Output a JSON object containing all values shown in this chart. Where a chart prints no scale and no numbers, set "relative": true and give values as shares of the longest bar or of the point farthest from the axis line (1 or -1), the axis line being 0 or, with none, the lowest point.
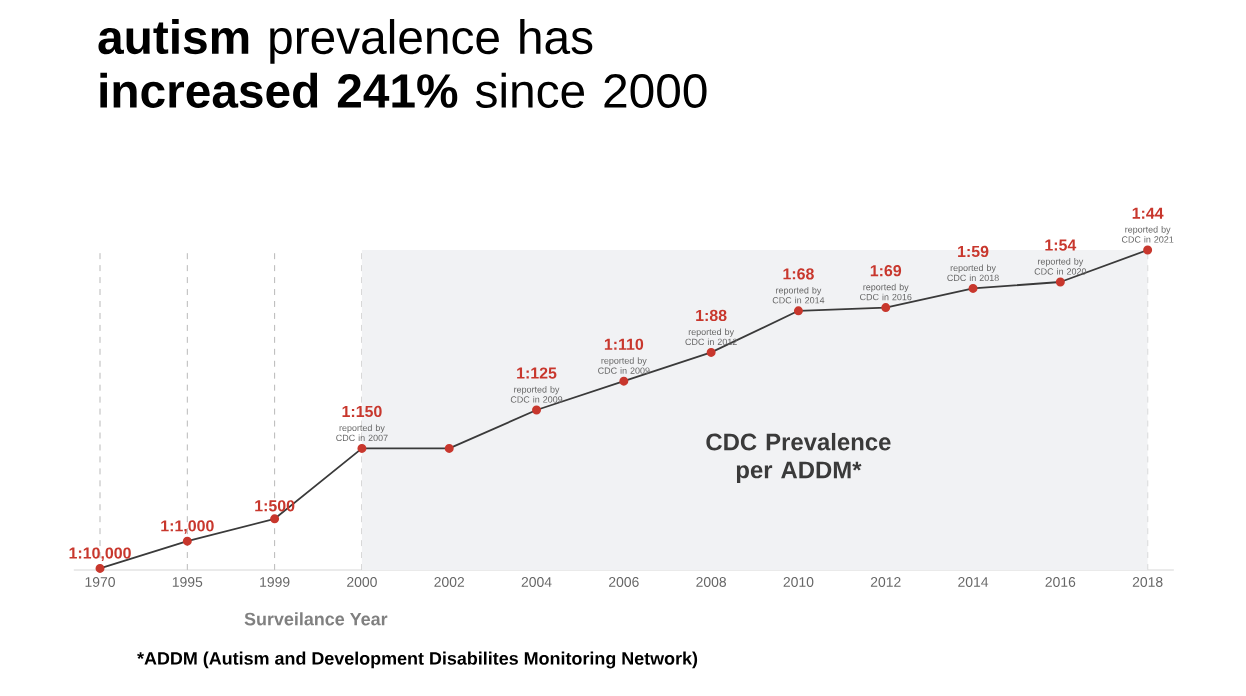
{
  "chart_data": {
    "type": "line",
    "title": "**autism** prevalence has **increased 241%** since 2000",
    "xlabel": "Surveilance Year",
    "categories": [
      "1970",
      "1995",
      "1999",
      "2000",
      "2002",
      "2004",
      "2006",
      "2008",
      "2010",
      "2012",
      "2014",
      "2016",
      "2018"
    ],
    "values": [
      0.005,
      0.09,
      0.16,
      0.38,
      0.38,
      0.5,
      0.59,
      0.68,
      0.81,
      0.82,
      0.88,
      0.9,
      1
    ],
    "color": "#c8372d",
    "relative": true,
    "marker": "circle",
    "grid": "x",
    "bands": [
      {
        "axis": "x",
        "from": "2000",
        "to": "2018",
        "label": "CDC Prevalence per ADDM*",
        "color": "#f1f2f4"
      }
    ],
    "annotations": [
      {
        "text": "1:10,000",
        "x": "1970",
        "y": 0.005
      },
      {
        "text": "1:1,000",
        "x": "1995",
        "y": 0.09
      },
      {
        "text": "1:500",
        "x": "1999",
        "y": 0.16
      },
      {
        "text": "reported by CDC in 2007",
        "x": "2000",
        "y": 0.38
      },
      {
        "text": "1:150",
        "x": "2000",
        "y": 0.38
      },
      {
        "text": "reported by CDC in 2009",
        "x": "2004",
        "y": 0.5
      },
      {
        "text": "1:125",
        "x": "2004",
        "y": 0.5
      },
      {
        "text": "reported by CDC in 2009",
        "x": "2006",
        "y": 0.59
      },
      {
        "text": "1:110",
        "x": "2006",
        "y": 0.59
      },
      {
        "text": "reported by CDC in 2012",
        "x": "2008",
        "y": 0.68
      },
      {
        "text": "1:88",
        "x": "2008",
        "y": 0.68
      },
      {
        "text": "reported by CDC in 2014",
        "x": "2010",
        "y": 0.81
      },
      {
        "text": "1:68",
        "x": "2010",
        "y": 0.81
      },
      {
        "text": "reported by CDC in 2016",
        "x": "2012",
        "y": 0.82
      },
      {
        "text": "1:69",
        "x": "2012",
        "y": 0.82
      },
      {
        "text": "reported by CDC in 2018",
        "x": "2014",
        "y": 0.88
      },
      {
        "text": "1:59",
        "x": "2014",
        "y": 0.88
      },
      {
        "text": "reported by CDC in 2020",
        "x": "2016",
        "y": 0.9
      },
      {
        "text": "1:54",
        "x": "2016",
        "y": 0.9
      },
      {
        "text": "reported by CDC in 2021",
        "x": "2018",
        "y": 1
      },
      {
        "text": "1:44",
        "x": "2018",
        "y": 1
      },
      "*ADDM (Autism and Development Disabilites Monitoring Network)"
    ]
  }
}
